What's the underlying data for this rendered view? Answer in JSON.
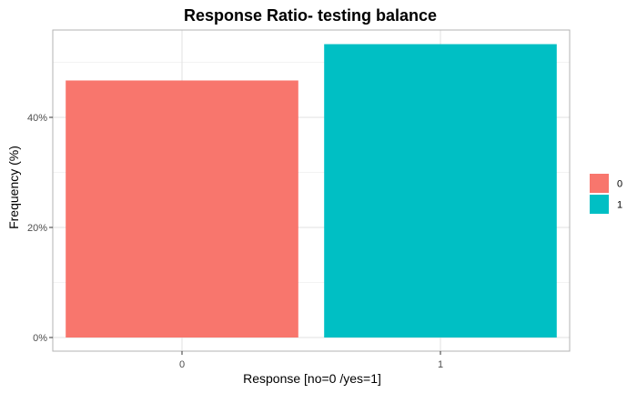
{
  "chart_data": {
    "type": "bar",
    "title": "Response Ratio- testing balance",
    "xlabel": "Response [no=0 /yes=1]",
    "ylabel": "Frequency (%)",
    "categories": [
      "0",
      "1"
    ],
    "values": [
      46.7,
      53.3
    ],
    "colors": [
      "#F8766D",
      "#00BFC4"
    ],
    "ylim": [
      0,
      56
    ],
    "yticks": [
      0,
      20,
      40
    ],
    "ytick_labels": [
      "0%",
      "20%",
      "40%"
    ],
    "grid": true,
    "legend": {
      "position": "right",
      "entries": [
        "0",
        "1"
      ]
    }
  }
}
